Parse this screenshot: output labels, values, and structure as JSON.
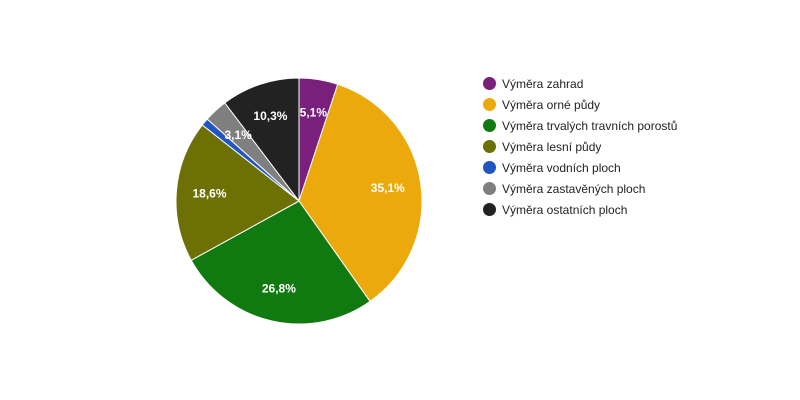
{
  "chart_data": {
    "type": "pie",
    "title": "",
    "slices": [
      {
        "name": "Výměra zahrad",
        "value": 5.1,
        "label": "5,1%",
        "color": "#7b1f7d"
      },
      {
        "name": "Výměra orné půdy",
        "value": 35.1,
        "label": "35,1%",
        "color": "#eba90b"
      },
      {
        "name": "Výměra trvalých travních porostů",
        "value": 26.8,
        "label": "26,8%",
        "color": "#107a10"
      },
      {
        "name": "Výměra lesní půdy",
        "value": 18.6,
        "label": "18,6%",
        "color": "#6d7105"
      },
      {
        "name": "Výměra vodních ploch",
        "value": 1.0,
        "label": "",
        "color": "#1f56c2"
      },
      {
        "name": "Výměra zastavěných ploch",
        "value": 3.1,
        "label": "3,1%",
        "color": "#7f7f7f"
      },
      {
        "name": "Výměra ostatních ploch",
        "value": 10.3,
        "label": "10,3%",
        "color": "#222222"
      }
    ],
    "legend_position": "right",
    "start_angle": "top",
    "direction": "clockwise"
  }
}
